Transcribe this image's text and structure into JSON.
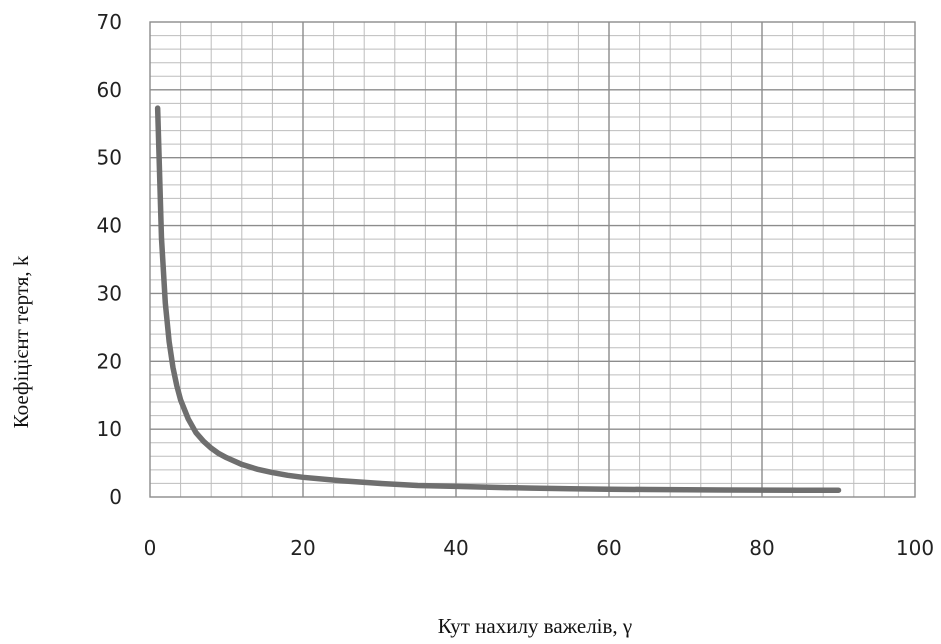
{
  "chart_data": {
    "type": "line",
    "title": "",
    "xlabel": "Кут нахилу важелів, γ",
    "ylabel": "Коефіцієнт тертя, k",
    "xlim": [
      0,
      100
    ],
    "ylim": [
      0,
      70
    ],
    "x_ticks": [
      "0",
      "20",
      "40",
      "60",
      "80",
      "100"
    ],
    "y_ticks": [
      "0",
      "10",
      "20",
      "30",
      "40",
      "50",
      "60",
      "70"
    ],
    "grid": true,
    "legend": "none",
    "series": [
      {
        "color": "#6f6f6f",
        "x": [
          1,
          1.5,
          2,
          2.5,
          3,
          3.5,
          4,
          5,
          6,
          7,
          8,
          9,
          10,
          12,
          14,
          16,
          18,
          20,
          25,
          30,
          35,
          40,
          45,
          50,
          55,
          60,
          65,
          70,
          75,
          80,
          85,
          90
        ],
        "y": [
          57.3,
          38.2,
          28.6,
          22.9,
          19.1,
          16.4,
          14.3,
          11.5,
          9.5,
          8.2,
          7.2,
          6.4,
          5.8,
          4.8,
          4.1,
          3.6,
          3.2,
          2.9,
          2.4,
          2.0,
          1.7,
          1.56,
          1.41,
          1.31,
          1.22,
          1.15,
          1.1,
          1.06,
          1.04,
          1.02,
          1.0,
          1.0
        ]
      }
    ]
  }
}
